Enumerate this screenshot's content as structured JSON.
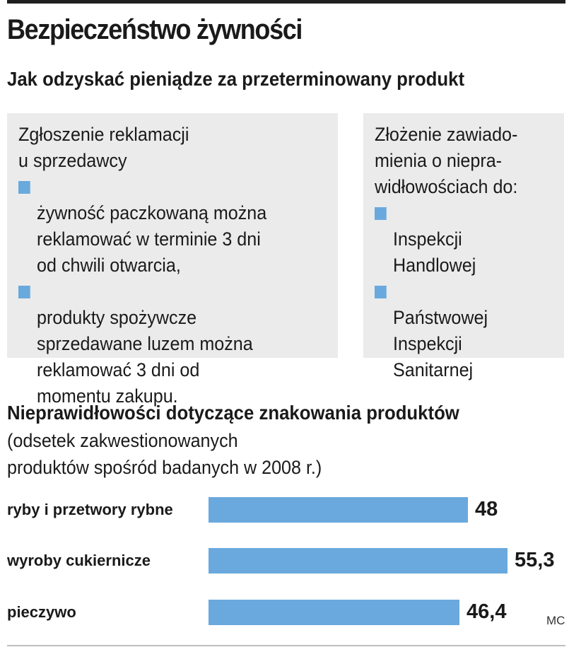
{
  "title": "Bezpieczeństwo żywności",
  "subtitle": "Jak odzyskać pieniądze za przeterminowany produkt",
  "left_box": {
    "heading": "Zgłoszenie reklamacji\nu sprzedawcy",
    "bullets": [
      "żywność paczkowaną można\nreklamować w terminie 3 dni\nod chwili otwarcia,",
      "produkty spożywcze\nsprzedawane luzem można\nreklamować 3 dni od\nmomentu zakupu."
    ]
  },
  "right_box": {
    "heading": "Złożenie zawiado-\nmienia o niepra-\nwidłowościach do:",
    "bullets": [
      "Inspekcji\nHandlowej",
      "Państwowej\nInspekcji\nSanitarnej"
    ]
  },
  "colors": {
    "bar": "#6aa9dd",
    "box": "#ebebeb",
    "bullet": "#6aa9dd"
  },
  "chart_data": {
    "type": "bar",
    "orientation": "horizontal",
    "title": "Nieprawidłowości dotyczące znakowania produktów",
    "subtitle": "(odsetek zakwestionowanych\nproduktów spośród badanych w 2008 r.)",
    "categories": [
      "ryby i przetwory rybne",
      "wyroby cukiernicze",
      "pieczywo"
    ],
    "values": [
      48,
      55.3,
      46.4
    ],
    "value_labels": [
      "48",
      "55,3",
      "46,4"
    ],
    "xlim": [
      0,
      55.3
    ],
    "grid": false
  },
  "credit": "MC"
}
